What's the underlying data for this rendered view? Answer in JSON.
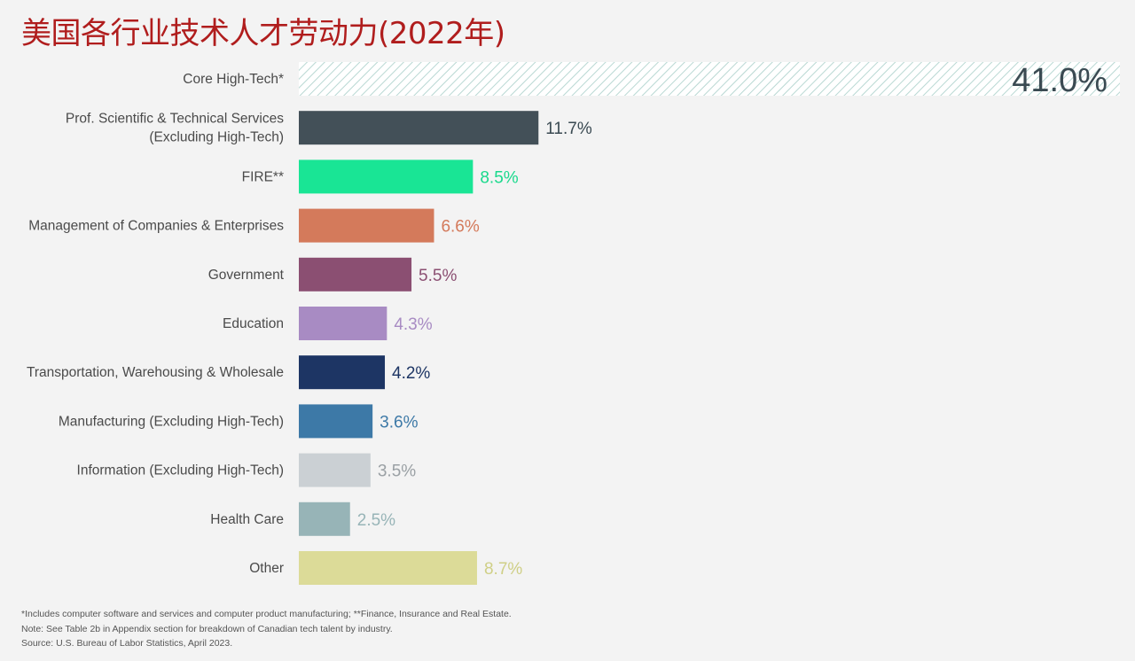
{
  "title": "美国各行业技术人才劳动力(2022年)",
  "chart_data": {
    "type": "bar",
    "orientation": "horizontal",
    "title": "美国各行业技术人才劳动力(2022年)",
    "xlabel": "",
    "ylabel": "",
    "unit": "%",
    "categories": [
      [
        "Core High-Tech*"
      ],
      [
        "Prof. Scientific & Technical Services",
        "(Excluding High-Tech)"
      ],
      [
        "FIRE**"
      ],
      [
        "Management of Companies & Enterprises"
      ],
      [
        "Government"
      ],
      [
        "Education"
      ],
      [
        "Transportation, Warehousing & Wholesale"
      ],
      [
        "Manufacturing (Excluding High-Tech)"
      ],
      [
        "Information (Excluding High-Tech)"
      ],
      [
        "Health Care"
      ],
      [
        "Other"
      ]
    ],
    "values": [
      41.0,
      11.7,
      8.5,
      6.6,
      5.5,
      4.3,
      4.2,
      3.6,
      3.5,
      2.5,
      8.7
    ],
    "value_labels": [
      "41.0%",
      "11.7%",
      "8.5%",
      "6.6%",
      "5.5%",
      "4.3%",
      "4.2%",
      "3.6%",
      "3.5%",
      "2.5%",
      "8.7%"
    ],
    "colors": [
      "#cfe3df",
      "#435058",
      "#19e595",
      "#d47a5b",
      "#8b4f72",
      "#a88bc3",
      "#1d3564",
      "#3d79a7",
      "#cbd0d4",
      "#97b4b7",
      "#dcdb98"
    ],
    "label_colors": [
      "#3a4a52",
      "#3a4a52",
      "#19d98c",
      "#d47a5b",
      "#8b4f72",
      "#a88bc3",
      "#1d3564",
      "#3d79a7",
      "#9aa0a4",
      "#97b4b7",
      "#cfcf86"
    ],
    "first_bar_hatched": true,
    "grid": false
  },
  "footnotes": [
    "*Includes computer software and services and computer product manufacturing; **Finance, Insurance and Real Estate.",
    "Note: See Table 2b in Appendix section for breakdown of Canadian tech talent by industry.",
    "Source: U.S. Bureau of Labor Statistics, April 2023."
  ]
}
